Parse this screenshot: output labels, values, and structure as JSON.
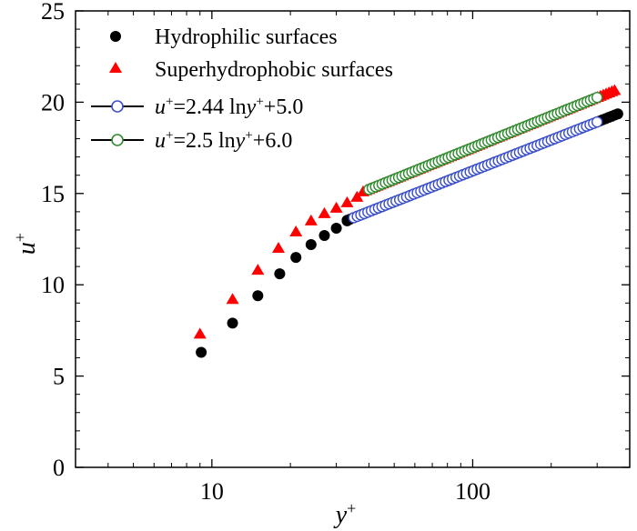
{
  "chart_data": {
    "type": "scatter",
    "x_scale": "log",
    "xlim": [
      3,
      400
    ],
    "ylim": [
      0,
      25
    ],
    "xlabel": {
      "base": "y",
      "sup": "+"
    },
    "ylabel": {
      "base": "u",
      "sup": "+"
    },
    "x_ticks": [
      {
        "value": 10,
        "label": "10"
      },
      {
        "value": 100,
        "label": "100"
      }
    ],
    "y_ticks": [
      {
        "value": 0,
        "label": "0"
      },
      {
        "value": 5,
        "label": "5"
      },
      {
        "value": 10,
        "label": "10"
      },
      {
        "value": 15,
        "label": "15"
      },
      {
        "value": 20,
        "label": "20"
      },
      {
        "value": 25,
        "label": "25"
      }
    ],
    "series": [
      {
        "name": "Hydrophilic surfaces",
        "marker": "circle-filled",
        "color": "#000000",
        "points": [
          [
            9.1,
            6.3
          ],
          [
            12.0,
            7.9
          ],
          [
            15.0,
            9.4
          ],
          [
            18.2,
            10.6
          ],
          [
            21.0,
            11.5
          ],
          [
            24.0,
            12.2
          ],
          [
            27.0,
            12.7
          ],
          [
            30.0,
            13.1
          ],
          [
            33.0,
            13.5
          ]
        ],
        "dense_curve": {
          "formula": "2.44*ln(x)+5.0",
          "x_start": 33,
          "x_end": 360,
          "count": 90
        }
      },
      {
        "name": "Superhydrophobic surfaces",
        "marker": "triangle-filled",
        "color": "#ff0000",
        "points": [
          [
            9.0,
            7.3
          ],
          [
            12.0,
            9.2
          ],
          [
            15.0,
            10.8
          ],
          [
            18.0,
            12.0
          ],
          [
            21.0,
            12.9
          ],
          [
            24.0,
            13.5
          ],
          [
            27.0,
            13.9
          ],
          [
            30.0,
            14.2
          ],
          [
            33.0,
            14.5
          ],
          [
            36.0,
            14.8
          ]
        ],
        "dense_curve": {
          "formula": "2.5*ln(x)+6.0",
          "x_start": 38,
          "x_end": 350,
          "count": 90
        }
      },
      {
        "name": "u+=2.44 lny+ +5.0",
        "marker": "circle-open",
        "color": "#3a4fcc",
        "line_color": "#000000",
        "formula": "2.44*ln(x)+5.0",
        "x_start": 35,
        "x_end": 300,
        "count": 70
      },
      {
        "name": "u+=2.5 lny+ +6.0",
        "marker": "circle-open",
        "color": "#2e8b2e",
        "line_color": "#000000",
        "formula": "2.5*ln(x)+6.0",
        "x_start": 40,
        "x_end": 300,
        "count": 70
      }
    ],
    "legend": {
      "placement": "top-left",
      "entries": [
        {
          "text": "Hydrophilic surfaces",
          "marker": "circle-filled"
        },
        {
          "text": "Superhydrophobic surfaces",
          "marker": "triangle-filled"
        },
        {
          "text_u": "u",
          "text_sup1": "+",
          "text_eq": "=2.44 ln",
          "text_y": "y",
          "text_sup2": "+",
          "text_tail": "+5.0",
          "marker": "circle-open"
        },
        {
          "text_u": "u",
          "text_sup1": "+",
          "text_eq": "=2.5 ln",
          "text_y": "y",
          "text_sup2": "+",
          "text_tail": "+6.0",
          "marker": "circle-open"
        }
      ]
    }
  }
}
